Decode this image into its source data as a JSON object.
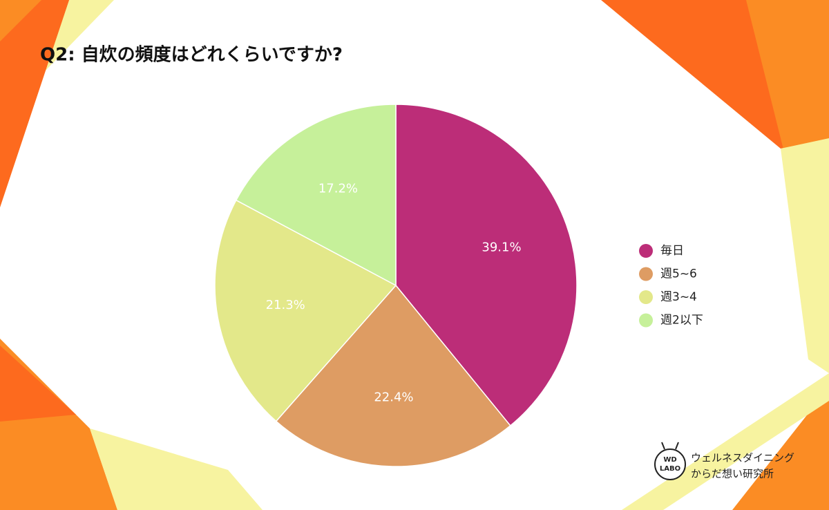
{
  "chart_data": {
    "type": "pie",
    "title": "Q2: 自炊の頻度はどれくらいですか?",
    "categories": [
      "毎日",
      "週5~6",
      "週3~4",
      "週2以下"
    ],
    "values": [
      39.1,
      22.4,
      21.3,
      17.2
    ],
    "value_labels": [
      "39.1%",
      "22.4%",
      "21.3%",
      "17.2%"
    ],
    "colors": [
      "#bc2d78",
      "#de9c63",
      "#e3e88a",
      "#c6f09a"
    ],
    "legend": "right"
  },
  "logo": {
    "mark": [
      "WD",
      "LABO"
    ],
    "text": [
      "ウェルネスダイニング",
      "からだ想い研究所"
    ]
  }
}
